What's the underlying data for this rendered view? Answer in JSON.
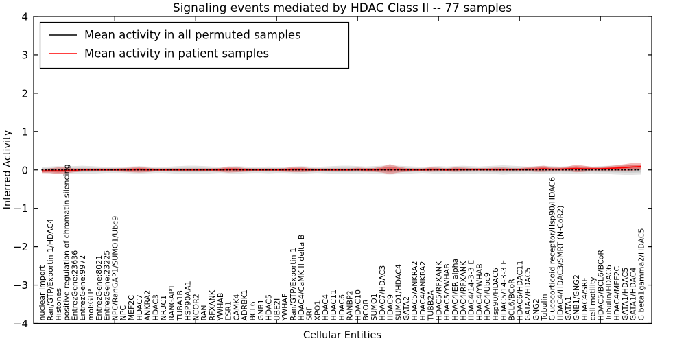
{
  "chart_data": {
    "type": "line",
    "title": "Signaling events mediated by HDAC Class II -- 77 samples",
    "xlabel": "Cellular Entities",
    "ylabel": "Inferred Activity",
    "ylim": [
      -4,
      4
    ],
    "grid": false,
    "yticks": [
      {
        "label": "4",
        "value": 4
      },
      {
        "label": "3",
        "value": 3
      },
      {
        "label": "2",
        "value": 2
      },
      {
        "label": "1",
        "value": 1
      },
      {
        "label": "0",
        "value": 0
      },
      {
        "label": "−1",
        "value": -1
      },
      {
        "label": "−2",
        "value": -2
      },
      {
        "label": "−3",
        "value": -3
      },
      {
        "label": "−4",
        "value": -4
      }
    ],
    "legend": {
      "position": "upper-left",
      "entries": [
        {
          "label": "Mean activity in all permuted samples",
          "color": "#000000"
        },
        {
          "label": "Mean activity in patient samples",
          "color": "#ff0000"
        }
      ]
    },
    "categories": [
      "nuclear import",
      "Ran/GTP/Exportin 1/HDAC4",
      "Histones",
      "positive regulation of chromatin silencing",
      "EntrezGene:23636",
      "EntrezGene:9972",
      "mol:GTP",
      "EntrezGene:8021",
      "EntrezGene:23225",
      "NPC/RanGAP1/SUMO1/Ubc9",
      "NPC",
      "MEF2C",
      "HDAC7",
      "ANKRA2",
      "HDAC3",
      "NR3C1",
      "RANGAP1",
      "TUBA1B",
      "HSP90AA1",
      "NCOR2",
      "RAN",
      "RFXANK",
      "YWHAB",
      "ESR1",
      "CAMK4",
      "ADRBK1",
      "BCL6",
      "GNB1",
      "HDAC5",
      "UBE2I",
      "YWHAE",
      "Ran/GTP/Exportin 1",
      "HDAC4/CaMK II delta B",
      "SRF",
      "XPO1",
      "HDAC4",
      "HDAC11",
      "HDAC6",
      "RANBP2",
      "HDAC10",
      "BCOR",
      "SUMO1",
      "HDAC7/HDAC3",
      "HDAC9",
      "SUMO1/HDAC4",
      "GATA2",
      "HDAC5/ANKRA2",
      "HDAC4/ANKRA2",
      "TUBB2A",
      "HDAC5/RFXANK",
      "HDAC5/YWHAB",
      "HDAC4/ER alpha",
      "HDAC4/RFXANK",
      "HDAC4/14-3-3 E",
      "HDAC4/YWHAB",
      "HDAC4/Ubc9",
      "Hsp90/HDAC6",
      "HDAC5/14-3-3 E",
      "BCL6/BCoR",
      "HDAC6/HDAC11",
      "GATA2/HDAC5",
      "GNG2",
      "Tubulin",
      "Glucocorticoid receptor/Hsp90/HDAC6",
      "HDAC4/HDAC3/SMRT (N-CoR2)",
      "GATA1",
      "GNB1/GNG2",
      "HDAC4/SRF",
      "cell motility",
      "HDAC5/BCL6/BCoR",
      "Tubulin/HDAC6",
      "HDAC4/MEF2C",
      "GATA1/HDAC5",
      "GATA1/HDAC4",
      "G beta1gamma2/HDAC5"
    ],
    "series": [
      {
        "name": "Mean activity in all permuted samples",
        "style": "dotted",
        "color": "#000000",
        "band_color": "#9a9a9a",
        "values": [
          0,
          0,
          0,
          0,
          0,
          0,
          0,
          0,
          0,
          0,
          0,
          0,
          0,
          0,
          0,
          0,
          0,
          0,
          0,
          0,
          0,
          0,
          0,
          0,
          0,
          0,
          0,
          0,
          0,
          0,
          0,
          0,
          0,
          0,
          0,
          0,
          0,
          0,
          0,
          0,
          0,
          0,
          0,
          0,
          0,
          0,
          0,
          0,
          0,
          0,
          0,
          0,
          0,
          0,
          0,
          0,
          0,
          0,
          0,
          0,
          0,
          0,
          0,
          0,
          0,
          0,
          0,
          0,
          0,
          0,
          0,
          0,
          0,
          0,
          0
        ],
        "band_halfwidth": [
          0.08,
          0.09,
          0.1,
          0.09,
          0.1,
          0.11,
          0.1,
          0.09,
          0.08,
          0.08,
          0.08,
          0.09,
          0.1,
          0.09,
          0.08,
          0.08,
          0.09,
          0.1,
          0.11,
          0.11,
          0.1,
          0.09,
          0.08,
          0.09,
          0.1,
          0.09,
          0.08,
          0.08,
          0.09,
          0.08,
          0.08,
          0.09,
          0.1,
          0.09,
          0.08,
          0.09,
          0.1,
          0.11,
          0.11,
          0.1,
          0.09,
          0.1,
          0.11,
          0.12,
          0.11,
          0.1,
          0.09,
          0.08,
          0.09,
          0.1,
          0.09,
          0.1,
          0.11,
          0.1,
          0.09,
          0.1,
          0.11,
          0.12,
          0.11,
          0.1,
          0.09,
          0.1,
          0.11,
          0.1,
          0.09,
          0.1,
          0.11,
          0.1,
          0.09,
          0.1,
          0.11,
          0.12,
          0.13,
          0.13,
          0.12
        ]
      },
      {
        "name": "Mean activity in patient samples",
        "style": "solid",
        "color": "#ff0000",
        "band_color": "#e64545",
        "values": [
          -0.03,
          -0.02,
          -0.02,
          -0.01,
          -0.01,
          0,
          0,
          0,
          0,
          0,
          0,
          0,
          0.01,
          0,
          0,
          0,
          0,
          0,
          0,
          0,
          0,
          0,
          0,
          0.01,
          0.01,
          0,
          0,
          0,
          0,
          0,
          0,
          0.01,
          0.01,
          0,
          0,
          0,
          0,
          0,
          0,
          0.01,
          0,
          0,
          0.01,
          0.02,
          0.01,
          0,
          0,
          0,
          0.01,
          0.01,
          0,
          0.01,
          0.01,
          0.01,
          0.01,
          0.01,
          0.01,
          0.01,
          0.01,
          0.01,
          0.02,
          0.02,
          0.03,
          0.02,
          0.02,
          0.03,
          0.04,
          0.03,
          0.03,
          0.03,
          0.04,
          0.05,
          0.06,
          0.08,
          0.09
        ],
        "band_halfwidth": [
          0.05,
          0.06,
          0.09,
          0.08,
          0.05,
          0.04,
          0.04,
          0.04,
          0.04,
          0.04,
          0.05,
          0.06,
          0.08,
          0.06,
          0.04,
          0.04,
          0.04,
          0.04,
          0.04,
          0.04,
          0.04,
          0.04,
          0.05,
          0.08,
          0.07,
          0.05,
          0.04,
          0.04,
          0.04,
          0.04,
          0.05,
          0.07,
          0.07,
          0.05,
          0.04,
          0.04,
          0.04,
          0.04,
          0.04,
          0.05,
          0.05,
          0.05,
          0.08,
          0.13,
          0.08,
          0.05,
          0.04,
          0.04,
          0.06,
          0.05,
          0.04,
          0.06,
          0.05,
          0.04,
          0.04,
          0.04,
          0.05,
          0.05,
          0.04,
          0.04,
          0.05,
          0.07,
          0.08,
          0.05,
          0.05,
          0.06,
          0.1,
          0.08,
          0.05,
          0.05,
          0.06,
          0.07,
          0.09,
          0.1,
          0.09
        ]
      }
    ]
  }
}
